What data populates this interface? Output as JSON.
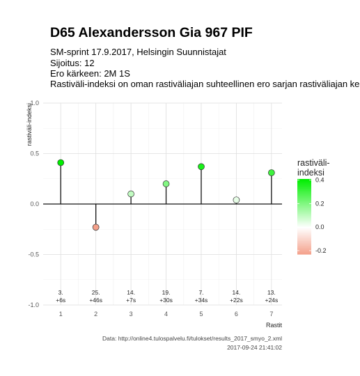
{
  "title": "D65 Alexandersson Gia 967 PIF",
  "subtitle_lines": [
    "SM-sprint 17.9.2017, Helsingin Suunnistajat",
    "Sijoitus: 12",
    "Ero kärkeen: 2M 1S",
    "Rastiväli-indeksi on oman rastiväliajan suhteellinen ero sarjan rastiväliajan keskiarvoon"
  ],
  "caption_lines": [
    "Data: http://online4.tulospalvelu.fi/tulokset/results_2017_smyo_2.xml",
    "2017-09-24 21:41:02"
  ],
  "chart_data": {
    "type": "lollipop",
    "xlabel": "Rastit",
    "ylabel": "rastiväli-indeksi",
    "x": [
      1,
      2,
      3,
      4,
      5,
      6,
      7
    ],
    "y": [
      0.41,
      -0.23,
      0.1,
      0.2,
      0.37,
      0.04,
      0.31
    ],
    "placement_labels": [
      "3.",
      "25.",
      "14.",
      "19.",
      "7.",
      "14.",
      "13."
    ],
    "time_diff_labels": [
      "+6s",
      "+46s",
      "+7s",
      "+30s",
      "+34s",
      "+22s",
      "+24s"
    ],
    "xlim": [
      0.5,
      7.3
    ],
    "ylim": [
      -1.0,
      1.0
    ],
    "x_ticks": [
      1,
      2,
      3,
      4,
      5,
      6,
      7
    ],
    "y_ticks": [
      -1.0,
      -0.5,
      0.0,
      0.5,
      1.0
    ],
    "y_tick_labels": [
      "-1.0",
      "-0.5",
      "0.0",
      "0.5",
      "1.0"
    ],
    "grid": true,
    "legend": {
      "title_lines": [
        "rastiväli-",
        "indeksi"
      ],
      "ticks": [
        -0.2,
        0.0,
        0.2,
        0.4
      ],
      "tick_labels": [
        "-0.2",
        "0.0",
        "0.2",
        "0.4"
      ],
      "range": [
        -0.23,
        0.41
      ],
      "low_color": "#f4a08a",
      "mid_color": "#ffffff",
      "high_color": "#00ee00",
      "placement": "right"
    }
  }
}
